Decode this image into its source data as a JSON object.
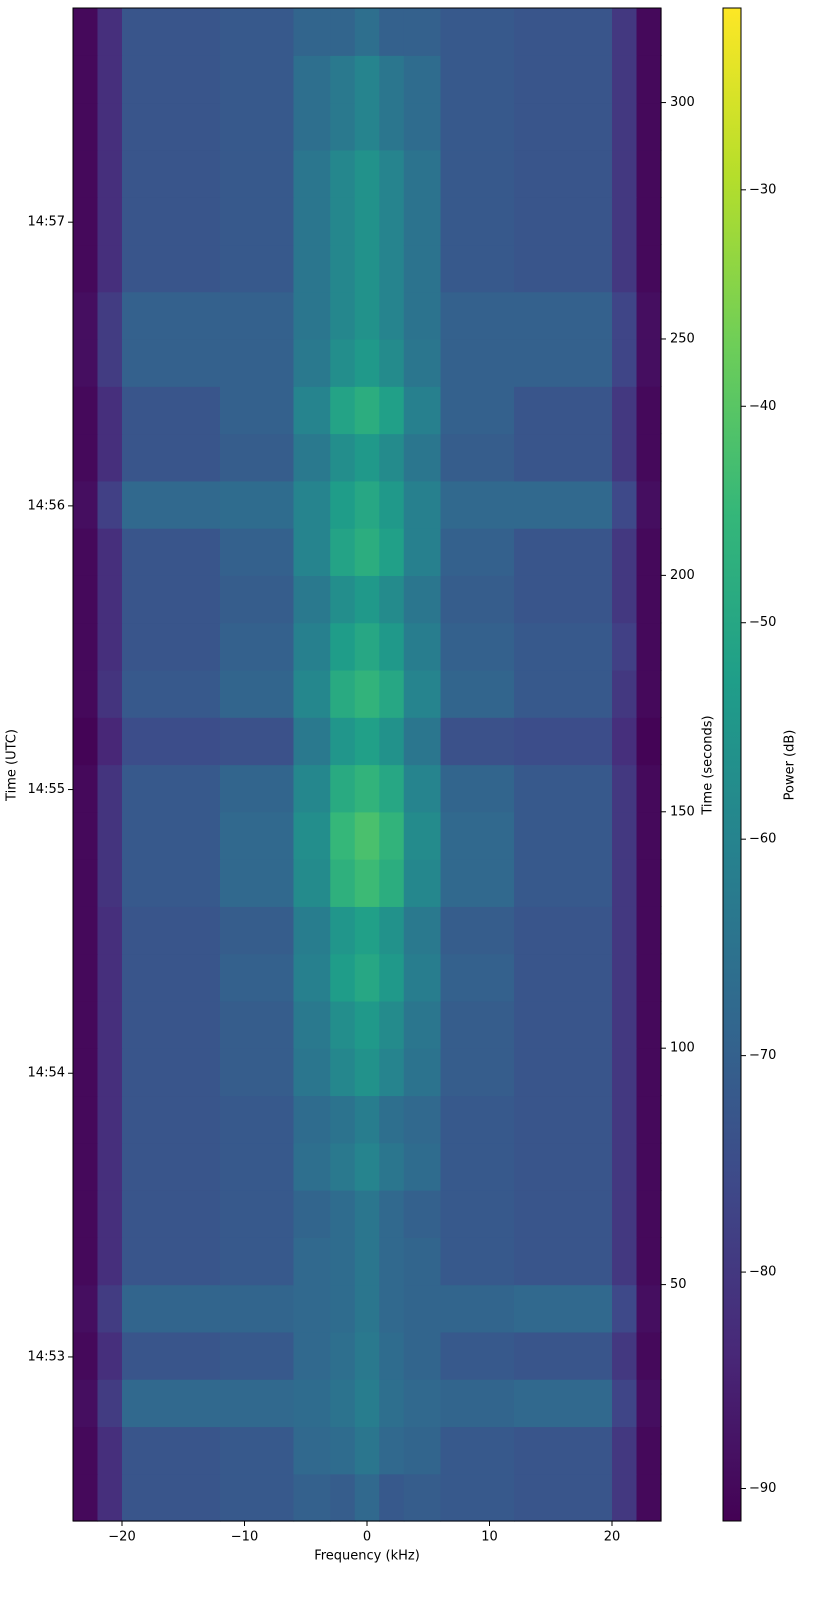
{
  "chart_data": {
    "type": "heatmap",
    "xlabel": "Frequency (kHz)",
    "ylabel": "Time (UTC)",
    "y2label": "Time (seconds)",
    "colorbar_label": "Power (dB)",
    "xlim": [
      -24,
      24
    ],
    "xticks": [
      {
        "value": -20,
        "label": "−20"
      },
      {
        "value": -10,
        "label": "−10"
      },
      0,
      10,
      20
    ],
    "ylim": [
      0,
      320
    ],
    "yticks": [
      {
        "value": 34.7,
        "label": "14:53"
      },
      {
        "value": 94.7,
        "label": "14:54"
      },
      {
        "value": 154.7,
        "label": "14:55"
      },
      {
        "value": 214.7,
        "label": "14:56"
      },
      {
        "value": 274.7,
        "label": "14:57"
      }
    ],
    "y2lim": [
      0,
      320
    ],
    "y2ticks": [
      50,
      100,
      150,
      200,
      250,
      300
    ],
    "clim": [
      -91.5,
      -21.6
    ],
    "cticks": [
      {
        "value": -90,
        "label": "−90"
      },
      {
        "value": -80,
        "label": "−80"
      },
      {
        "value": -70,
        "label": "−70"
      },
      {
        "value": -60,
        "label": "−60"
      },
      {
        "value": -50,
        "label": "−50"
      },
      {
        "value": -40,
        "label": "−40"
      },
      {
        "value": -30,
        "label": "−30"
      }
    ],
    "colormap": [
      "#440154",
      "#482878",
      "#3e4989",
      "#31688e",
      "#26828e",
      "#1f9e89",
      "#35b779",
      "#6ece58",
      "#b5de2b",
      "#fde725"
    ],
    "xbins": [
      -24,
      -22,
      -20,
      -12,
      -6,
      -3,
      -1,
      1,
      3,
      6,
      12,
      20,
      22,
      24
    ],
    "ybins": [
      0,
      10,
      20,
      30,
      40,
      50,
      60,
      70,
      80,
      90,
      100,
      110,
      120,
      130,
      140,
      150,
      160,
      170,
      180,
      190,
      200,
      210,
      220,
      230,
      240,
      250,
      260,
      270,
      280,
      290,
      300,
      310,
      320
    ],
    "z": [
      [
        -90,
        -82,
        -73,
        -72,
        -70,
        -71,
        -68,
        -72,
        -71,
        -72,
        -73,
        -80,
        -90
      ],
      [
        -90,
        -82,
        -73,
        -72,
        -68,
        -67,
        -64,
        -68,
        -69,
        -72,
        -73,
        -80,
        -90
      ],
      [
        -89,
        -79,
        -68,
        -68,
        -67,
        -65,
        -62,
        -66,
        -68,
        -69,
        -68,
        -77,
        -89
      ],
      [
        -90,
        -82,
        -73,
        -72,
        -68,
        -66,
        -63,
        -67,
        -69,
        -72,
        -73,
        -80,
        -90
      ],
      [
        -89,
        -79,
        -69,
        -69,
        -68,
        -67,
        -64,
        -68,
        -69,
        -69,
        -68,
        -76,
        -89
      ],
      [
        -90,
        -82,
        -73,
        -72,
        -68,
        -67,
        -64,
        -68,
        -69,
        -72,
        -73,
        -80,
        -90
      ],
      [
        -90,
        -82,
        -73,
        -72,
        -69,
        -67,
        -64,
        -68,
        -70,
        -72,
        -73,
        -80,
        -90
      ],
      [
        -90,
        -82,
        -73,
        -72,
        -66,
        -63,
        -60,
        -64,
        -67,
        -72,
        -73,
        -80,
        -90
      ],
      [
        -90,
        -82,
        -73,
        -72,
        -67,
        -65,
        -62,
        -66,
        -68,
        -72,
        -73,
        -80,
        -90
      ],
      [
        -90,
        -82,
        -73,
        -71,
        -64,
        -59,
        -56,
        -60,
        -65,
        -71,
        -73,
        -80,
        -90
      ],
      [
        -90,
        -82,
        -73,
        -71,
        -63,
        -57,
        -54,
        -58,
        -64,
        -71,
        -73,
        -80,
        -90
      ],
      [
        -90,
        -82,
        -73,
        -70,
        -61,
        -53,
        -50,
        -54,
        -62,
        -70,
        -73,
        -80,
        -90
      ],
      [
        -90,
        -82,
        -73,
        -71,
        -62,
        -55,
        -52,
        -56,
        -63,
        -71,
        -73,
        -80,
        -90
      ],
      [
        -90,
        -81,
        -72,
        -68,
        -58,
        -47,
        -44,
        -48,
        -59,
        -68,
        -72,
        -80,
        -90
      ],
      [
        -90,
        -81,
        -72,
        -68,
        -57,
        -45,
        -42,
        -46,
        -58,
        -68,
        -72,
        -80,
        -90
      ],
      [
        -90,
        -81,
        -72,
        -69,
        -59,
        -49,
        -46,
        -50,
        -60,
        -69,
        -72,
        -80,
        -90
      ],
      [
        -91,
        -84,
        -75,
        -74,
        -63,
        -55,
        -52,
        -56,
        -64,
        -74,
        -75,
        -82,
        -91
      ],
      [
        -90,
        -81,
        -72,
        -69,
        -59,
        -49,
        -46,
        -50,
        -60,
        -69,
        -72,
        -80,
        -90
      ],
      [
        -90,
        -82,
        -73,
        -70,
        -61,
        -53,
        -50,
        -54,
        -62,
        -70,
        -72,
        -78,
        -90
      ],
      [
        -90,
        -82,
        -73,
        -71,
        -63,
        -57,
        -54,
        -58,
        -64,
        -71,
        -73,
        -80,
        -90
      ],
      [
        -90,
        -82,
        -73,
        -70,
        -60,
        -51,
        -48,
        -52,
        -61,
        -70,
        -73,
        -80,
        -90
      ],
      [
        -89,
        -78,
        -68,
        -67,
        -60,
        -53,
        -50,
        -54,
        -61,
        -68,
        -68,
        -76,
        -89
      ],
      [
        -90,
        -82,
        -73,
        -71,
        -63,
        -57,
        -54,
        -58,
        -64,
        -71,
        -73,
        -80,
        -90
      ],
      [
        -90,
        -82,
        -73,
        -70,
        -60,
        -51,
        -48,
        -52,
        -61,
        -70,
        -73,
        -80,
        -90
      ],
      [
        -89,
        -79,
        -70,
        -70,
        -63,
        -57,
        -54,
        -58,
        -64,
        -70,
        -70,
        -77,
        -89
      ],
      [
        -89,
        -79,
        -70,
        -70,
        -64,
        -59,
        -56,
        -60,
        -65,
        -70,
        -70,
        -77,
        -89
      ],
      [
        -90,
        -82,
        -73,
        -72,
        -64,
        -59,
        -56,
        -60,
        -65,
        -72,
        -73,
        -80,
        -90
      ],
      [
        -90,
        -82,
        -73,
        -72,
        -64,
        -59,
        -56,
        -60,
        -65,
        -72,
        -73,
        -80,
        -90
      ],
      [
        -90,
        -82,
        -73,
        -72,
        -64,
        -59,
        -56,
        -60,
        -65,
        -72,
        -73,
        -80,
        -90
      ],
      [
        -90,
        -82,
        -73,
        -72,
        -66,
        -63,
        -60,
        -64,
        -67,
        -72,
        -73,
        -80,
        -90
      ],
      [
        -90,
        -82,
        -73,
        -72,
        -66,
        -63,
        -60,
        -64,
        -67,
        -72,
        -73,
        -80,
        -90
      ],
      [
        -90,
        -82,
        -73,
        -72,
        -69,
        -69,
        -66,
        -70,
        -70,
        -72,
        -73,
        -80,
        -90
      ]
    ]
  }
}
